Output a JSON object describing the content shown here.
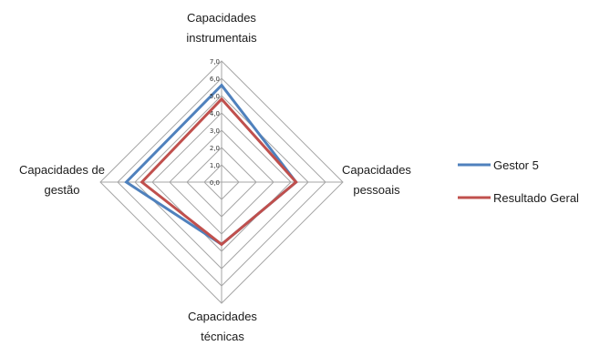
{
  "chart_data": {
    "type": "radar",
    "title": "",
    "axes": [
      {
        "label_lines": [
          "Capacidades",
          "instrumentais"
        ]
      },
      {
        "label_lines": [
          "Capacidades",
          "pessoais"
        ]
      },
      {
        "label_lines": [
          "Capacidades",
          "técnicas"
        ]
      },
      {
        "label_lines": [
          "Capacidades de",
          "gestão"
        ]
      }
    ],
    "ticks": [
      "0,0",
      "1,0",
      "2,0",
      "3,0",
      "4,0",
      "5,0",
      "6,0",
      "7,0"
    ],
    "range": [
      0,
      7
    ],
    "series": [
      {
        "name": "Gestor 5",
        "color": "#4f81bd",
        "values": [
          5.6,
          4.3,
          3.6,
          5.5
        ]
      },
      {
        "name": "Resultado Geral",
        "color": "#c0504d",
        "values": [
          4.8,
          4.3,
          3.6,
          4.6
        ]
      }
    ],
    "grid": true,
    "legend_position": "right"
  }
}
